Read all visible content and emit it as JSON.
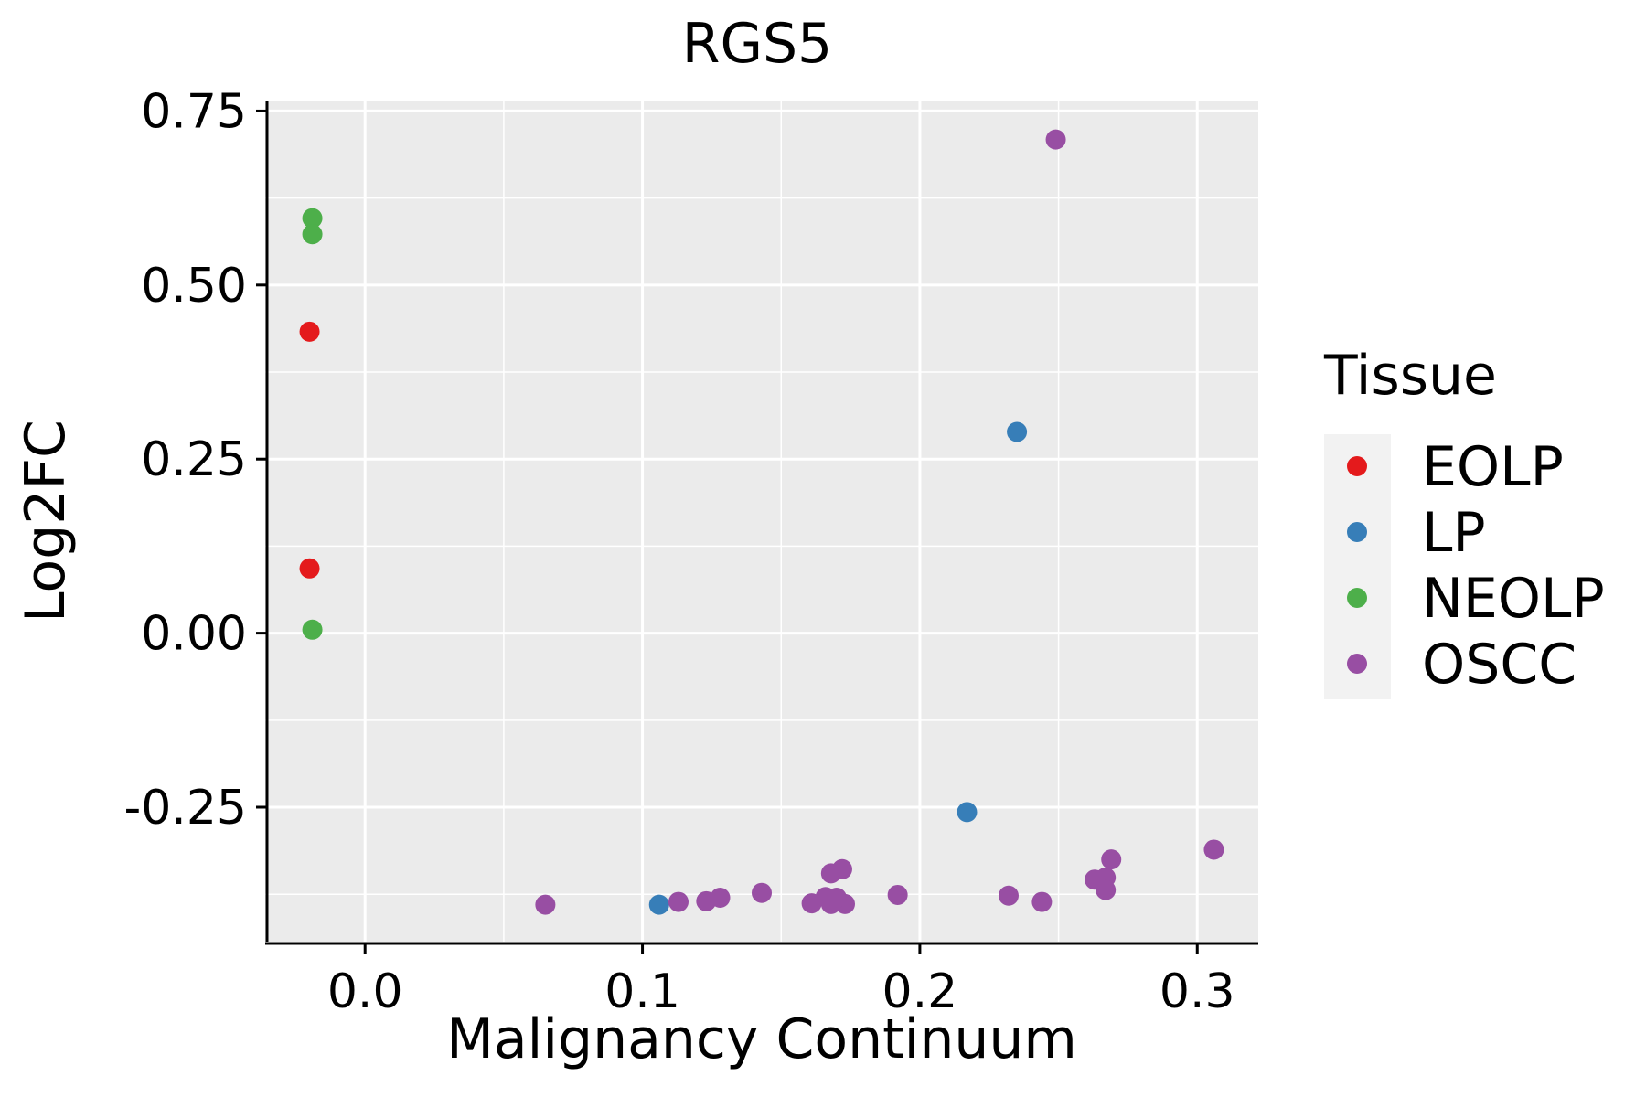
{
  "chart_data": {
    "type": "scatter",
    "title": "RGS5",
    "xlabel": "Malignancy Continuum",
    "ylabel": "Log2FC",
    "xlim": [
      -0.036,
      0.322
    ],
    "ylim": [
      -0.443,
      0.765
    ],
    "x_ticks": [
      0.0,
      0.1,
      0.2,
      0.3
    ],
    "x_tick_labels": [
      "0.0",
      "0.1",
      "0.2",
      "0.3"
    ],
    "y_ticks": [
      -0.25,
      0.0,
      0.25,
      0.5,
      0.75
    ],
    "y_tick_labels": [
      "-0.25",
      "0.00",
      "0.25",
      "0.50",
      "0.75"
    ],
    "grid": true,
    "legend": {
      "title": "Tissue",
      "position": "right"
    },
    "series": [
      {
        "name": "EOLP",
        "color": "#E41A1C",
        "points": [
          [
            -0.02,
            0.433
          ],
          [
            -0.02,
            0.093
          ]
        ]
      },
      {
        "name": "LP",
        "color": "#377EB8",
        "points": [
          [
            0.235,
            0.289
          ],
          [
            0.217,
            -0.257
          ],
          [
            0.106,
            -0.39
          ]
        ]
      },
      {
        "name": "NEOLP",
        "color": "#4DAF4A",
        "points": [
          [
            -0.019,
            0.596
          ],
          [
            -0.019,
            0.573
          ],
          [
            -0.019,
            0.005
          ]
        ]
      },
      {
        "name": "OSCC",
        "color": "#984EA3",
        "points": [
          [
            0.249,
            0.709
          ],
          [
            0.306,
            -0.311
          ],
          [
            0.269,
            -0.325
          ],
          [
            0.267,
            -0.351
          ],
          [
            0.263,
            -0.354
          ],
          [
            0.267,
            -0.369
          ],
          [
            0.244,
            -0.386
          ],
          [
            0.232,
            -0.377
          ],
          [
            0.192,
            -0.376
          ],
          [
            0.172,
            -0.339
          ],
          [
            0.168,
            -0.345
          ],
          [
            0.173,
            -0.389
          ],
          [
            0.168,
            -0.389
          ],
          [
            0.166,
            -0.379
          ],
          [
            0.17,
            -0.38
          ],
          [
            0.161,
            -0.388
          ],
          [
            0.143,
            -0.373
          ],
          [
            0.128,
            -0.38
          ],
          [
            0.123,
            -0.385
          ],
          [
            0.113,
            -0.386
          ],
          [
            0.065,
            -0.39
          ]
        ]
      }
    ]
  }
}
